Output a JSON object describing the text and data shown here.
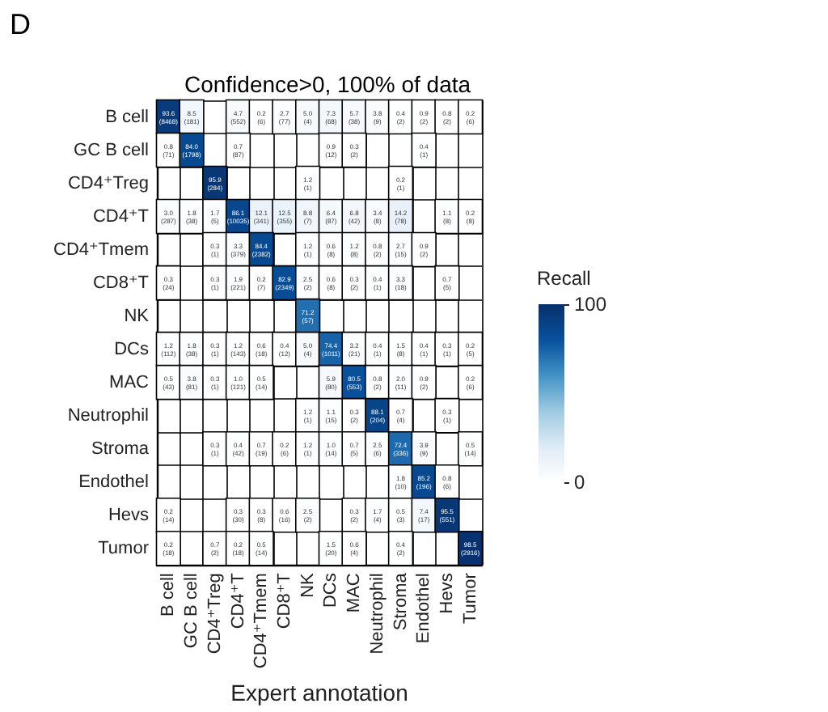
{
  "chart_data": {
    "type": "heatmap",
    "title": "Confidence>0, 100% of data",
    "xlabel": "Expert annotation",
    "clabel": "Recall",
    "annotations": [
      "D"
    ],
    "categories": [
      "B cell",
      "GC B cell",
      "CD4⁺Treg",
      "CD4⁺T",
      "CD4⁺Tmem",
      "CD8⁺T",
      "NK",
      "DCs",
      "MAC",
      "Neutrophil",
      "Stroma",
      "Endothel",
      "Hevs",
      "Tumor"
    ],
    "y_categories": [
      "B cell",
      "GC B cell",
      "CD4⁺Treg",
      "CD4⁺T",
      "CD4⁺Tmem",
      "CD8⁺T",
      "NK",
      "DCs",
      "MAC",
      "Neutrophil",
      "Stroma",
      "Endothel",
      "Hevs",
      "Tumor"
    ],
    "cells": [
      [
        93.6,
        8.5,
        null,
        4.7,
        0.2,
        2.7,
        5.0,
        7.3,
        5.7,
        3.8,
        0.4,
        0.9,
        0.8,
        0.2
      ],
      [
        0.8,
        84.0,
        null,
        0.7,
        null,
        null,
        null,
        0.9,
        0.3,
        null,
        null,
        0.4,
        null,
        null
      ],
      [
        null,
        null,
        95.9,
        null,
        null,
        null,
        1.2,
        null,
        null,
        null,
        0.2,
        null,
        null,
        null
      ],
      [
        3.0,
        1.8,
        1.7,
        86.1,
        12.1,
        12.5,
        8.8,
        6.4,
        6.8,
        3.4,
        14.2,
        null,
        1.1,
        0.2
      ],
      [
        null,
        null,
        0.3,
        3.3,
        84.4,
        null,
        1.2,
        0.6,
        1.2,
        0.8,
        2.7,
        0.9,
        null,
        null
      ],
      [
        0.3,
        null,
        0.3,
        1.9,
        0.2,
        82.9,
        2.5,
        0.6,
        0.3,
        0.4,
        3.3,
        null,
        0.7,
        null
      ],
      [
        null,
        null,
        null,
        null,
        null,
        null,
        71.2,
        null,
        null,
        null,
        null,
        null,
        null,
        null
      ],
      [
        1.2,
        1.8,
        0.3,
        1.2,
        0.6,
        0.4,
        5.0,
        74.4,
        3.2,
        0.4,
        1.5,
        0.4,
        0.3,
        0.2
      ],
      [
        0.5,
        3.8,
        0.3,
        1.0,
        0.5,
        null,
        null,
        5.9,
        80.5,
        0.8,
        2.0,
        0.9,
        null,
        0.2
      ],
      [
        null,
        null,
        null,
        null,
        null,
        null,
        1.2,
        1.1,
        0.3,
        88.1,
        0.7,
        null,
        0.3,
        null
      ],
      [
        null,
        null,
        0.3,
        0.4,
        0.7,
        0.2,
        1.2,
        1.0,
        0.7,
        2.5,
        72.4,
        3.9,
        null,
        0.5
      ],
      [
        null,
        null,
        null,
        null,
        null,
        null,
        null,
        null,
        null,
        null,
        1.8,
        85.2,
        0.8,
        null
      ],
      [
        0.2,
        null,
        null,
        0.3,
        0.3,
        0.6,
        2.5,
        null,
        0.3,
        1.7,
        0.5,
        7.4,
        95.5,
        null
      ],
      [
        0.2,
        null,
        0.7,
        0.2,
        0.5,
        null,
        null,
        1.5,
        0.6,
        null,
        0.4,
        null,
        null,
        98.5
      ]
    ],
    "cell_labels": [
      [
        "93.6\n(8468)",
        "8.5\n(181)",
        null,
        "4.7\n(552)",
        "0.2\n(6)",
        "2.7\n(77)",
        "5.0\n(4)",
        "7.3\n(68)",
        "5.7\n(38)",
        "3.8\n(9)",
        "0.4\n(2)",
        "0.9\n(2)",
        "0.8\n(2)",
        "0.2\n(6)"
      ],
      [
        "0.8\n(71)",
        "84.0\n(1798)",
        null,
        "0.7\n(87)",
        null,
        null,
        null,
        "0.9\n(12)",
        "0.3\n(2)",
        null,
        null,
        "0.4\n(1)",
        null,
        null
      ],
      [
        null,
        null,
        "95.9\n(284)",
        null,
        null,
        null,
        "1.2\n(1)",
        null,
        null,
        null,
        "0.2\n(1)",
        null,
        null,
        null
      ],
      [
        "3.0\n(287)",
        "1.8\n(38)",
        "1.7\n(5)",
        "86.1\n(10035)",
        "12.1\n(341)",
        "12.5\n(355)",
        "8.8\n(7)",
        "6.4\n(87)",
        "6.8\n(42)",
        "3.4\n(8)",
        "14.2\n(78)",
        null,
        "1.1\n(8)",
        "0.2\n(8)"
      ],
      [
        null,
        null,
        "0.3\n(1)",
        "3.3\n(379)",
        "84.4\n(2382)",
        null,
        "1.2\n(1)",
        "0.6\n(8)",
        "1.2\n(8)",
        "0.8\n(2)",
        "2.7\n(15)",
        "0.9\n(2)",
        null,
        null
      ],
      [
        "0.3\n(24)",
        null,
        "0.3\n(1)",
        "1.9\n(221)",
        "0.2\n(7)",
        "82.9\n(2349)",
        "2.5\n(2)",
        "0.6\n(8)",
        "0.3\n(2)",
        "0.4\n(1)",
        "3.3\n(18)",
        null,
        "0.7\n(5)",
        null
      ],
      [
        null,
        null,
        null,
        null,
        null,
        null,
        "71.2\n(57)",
        null,
        null,
        null,
        null,
        null,
        null,
        null
      ],
      [
        "1.2\n(112)",
        "1.8\n(38)",
        "0.3\n(1)",
        "1.2\n(143)",
        "0.6\n(18)",
        "0.4\n(12)",
        "5.0\n(4)",
        "74.4\n(1011)",
        "3.2\n(21)",
        "0.4\n(1)",
        "1.5\n(8)",
        "0.4\n(1)",
        "0.3\n(1)",
        "0.2\n(5)"
      ],
      [
        "0.5\n(43)",
        "3.8\n(81)",
        "0.3\n(1)",
        "1.0\n(121)",
        "0.5\n(14)",
        null,
        null,
        "5.9\n(80)",
        "80.5\n(553)",
        "0.8\n(2)",
        "2.0\n(11)",
        "0.9\n(2)",
        null,
        "0.2\n(6)"
      ],
      [
        null,
        null,
        null,
        null,
        null,
        null,
        "1.2\n(1)",
        "1.1\n(15)",
        "0.3\n(2)",
        "88.1\n(204)",
        "0.7\n(4)",
        null,
        "0.3\n(1)",
        null
      ],
      [
        null,
        null,
        "0.3\n(1)",
        "0.4\n(42)",
        "0.7\n(19)",
        "0.2\n(6)",
        "1.2\n(1)",
        "1.0\n(14)",
        "0.7\n(5)",
        "2.5\n(6)",
        "72.4\n(336)",
        "3.9\n(9)",
        null,
        "0.5\n(14)"
      ],
      [
        null,
        null,
        null,
        null,
        null,
        null,
        null,
        null,
        null,
        null,
        "1.8\n(10)",
        "85.2\n(196)",
        "0.8\n(6)",
        null
      ],
      [
        "0.2\n(14)",
        null,
        null,
        "0.3\n(30)",
        "0.3\n(8)",
        "0.6\n(16)",
        "2.5\n(2)",
        null,
        "0.3\n(2)",
        "1.7\n(4)",
        "0.5\n(3)",
        "7.4\n(17)",
        "95.5\n(551)",
        null
      ],
      [
        "0.2\n(18)",
        null,
        "0.7\n(2)",
        "0.2\n(18)",
        "0.5\n(14)",
        null,
        null,
        "1.5\n(20)",
        "0.6\n(4)",
        null,
        "0.4\n(2)",
        null,
        null,
        "98.5\n(2916)"
      ]
    ],
    "clim": [
      0,
      100
    ],
    "cticks": [
      0,
      100
    ]
  }
}
